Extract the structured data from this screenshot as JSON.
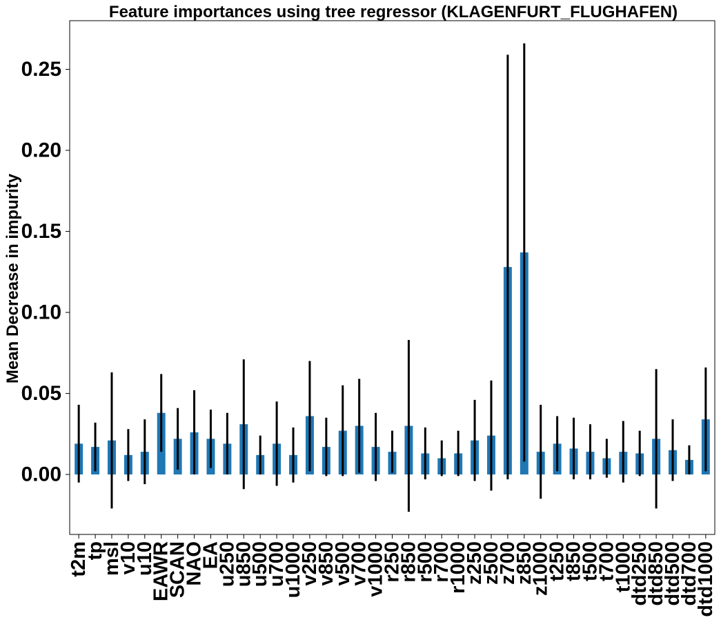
{
  "chart_data": {
    "type": "bar",
    "title": "Feature importances using tree regressor (KLAGENFURT_FLUGHAFEN)",
    "xlabel": "",
    "ylabel": "Mean Decrease in impurity",
    "ylim": [
      -0.037,
      0.28
    ],
    "yticks": [
      "0.00",
      "0.05",
      "0.10",
      "0.15",
      "0.20",
      "0.25"
    ],
    "grid": false,
    "bar_color": "#1f77b4",
    "error_color": "#000000",
    "categories": [
      "t2m",
      "tp",
      "msl",
      "v10",
      "u10",
      "EAWR",
      "SCAN",
      "NAO",
      "EA",
      "u250",
      "u850",
      "u500",
      "u700",
      "u1000",
      "v250",
      "v850",
      "v500",
      "v700",
      "v1000",
      "r250",
      "r850",
      "r500",
      "r700",
      "r1000",
      "z250",
      "z500",
      "z700",
      "z850",
      "z1000",
      "t250",
      "t850",
      "t500",
      "t700",
      "t1000",
      "dtd250",
      "dtd850",
      "dtd500",
      "dtd700",
      "dtd1000"
    ],
    "values": [
      0.019,
      0.017,
      0.021,
      0.012,
      0.014,
      0.038,
      0.022,
      0.026,
      0.022,
      0.019,
      0.031,
      0.012,
      0.019,
      0.012,
      0.036,
      0.017,
      0.027,
      0.03,
      0.017,
      0.014,
      0.03,
      0.013,
      0.01,
      0.013,
      0.021,
      0.024,
      0.128,
      0.137,
      0.014,
      0.019,
      0.016,
      0.014,
      0.01,
      0.014,
      0.013,
      0.022,
      0.015,
      0.009,
      0.034
    ],
    "errors": [
      0.024,
      0.015,
      0.042,
      0.016,
      0.02,
      0.024,
      0.019,
      0.026,
      0.018,
      0.019,
      0.04,
      0.012,
      0.026,
      0.017,
      0.034,
      0.018,
      0.028,
      0.029,
      0.021,
      0.013,
      0.053,
      0.016,
      0.011,
      0.014,
      0.025,
      0.034,
      0.131,
      0.129,
      0.029,
      0.017,
      0.019,
      0.017,
      0.012,
      0.019,
      0.014,
      0.043,
      0.019,
      0.009,
      0.032
    ]
  }
}
